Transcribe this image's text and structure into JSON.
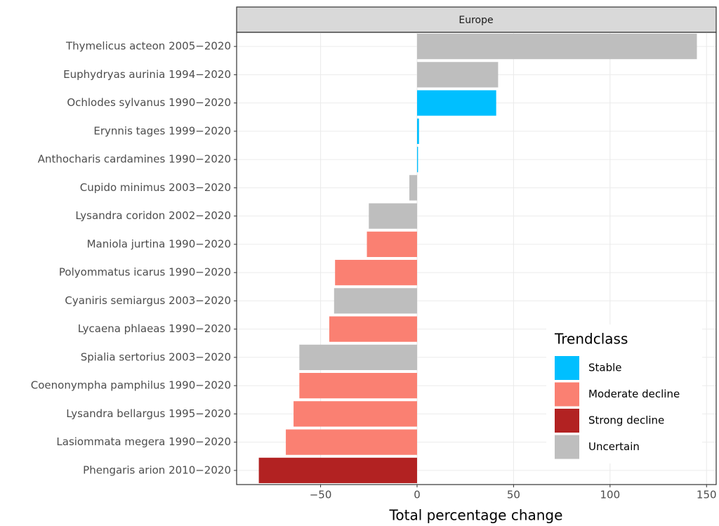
{
  "chart_data": {
    "type": "bar",
    "orientation": "horizontal",
    "facet_label": "Europe",
    "x_label": "Total percentage change",
    "legend_title": "Trendclass",
    "categories": [
      "Thymelicus acteon 2005−2020",
      "Euphydryas aurinia 1994−2020",
      "Ochlodes sylvanus 1990−2020",
      "Erynnis tages 1999−2020",
      "Anthocharis cardamines 1990−2020",
      "Cupido minimus 2003−2020",
      "Lysandra coridon 2002−2020",
      "Maniola jurtina 1990−2020",
      "Polyommatus icarus 1990−2020",
      "Cyaniris semiargus 2003−2020",
      "Lycaena phlaeas 1990−2020",
      "Spialia sertorius 2003−2020",
      "Coenonympha pamphilus 1990−2020",
      "Lysandra bellargus 1995−2020",
      "Lasiommata megera 1990−2020",
      "Phengaris arion 2010−2020"
    ],
    "series": [
      {
        "name": "Stable",
        "color": "#00bfff",
        "values": [
          null,
          null,
          41,
          1,
          0.5,
          null,
          null,
          null,
          null,
          null,
          null,
          null,
          null,
          null,
          null,
          null
        ]
      },
      {
        "name": "Moderate decline",
        "color": "#fa8072",
        "values": [
          null,
          null,
          null,
          null,
          null,
          null,
          null,
          -26,
          -42.5,
          null,
          -45.5,
          null,
          -61,
          -64,
          -68,
          null
        ]
      },
      {
        "name": "Strong decline",
        "color": "#b22222",
        "values": [
          null,
          null,
          null,
          null,
          null,
          null,
          null,
          null,
          null,
          null,
          null,
          null,
          null,
          null,
          null,
          -82
        ]
      },
      {
        "name": "Uncertain",
        "color": "#bebebe",
        "values": [
          145,
          42,
          null,
          null,
          null,
          -4,
          -25,
          null,
          null,
          -43,
          null,
          -61,
          null,
          null,
          null,
          null
        ]
      }
    ],
    "xlim": [
      -93.5,
      155
    ],
    "xticks": [
      {
        "value": -50,
        "label": "−50"
      },
      0,
      50,
      100,
      150
    ],
    "grid": true
  }
}
